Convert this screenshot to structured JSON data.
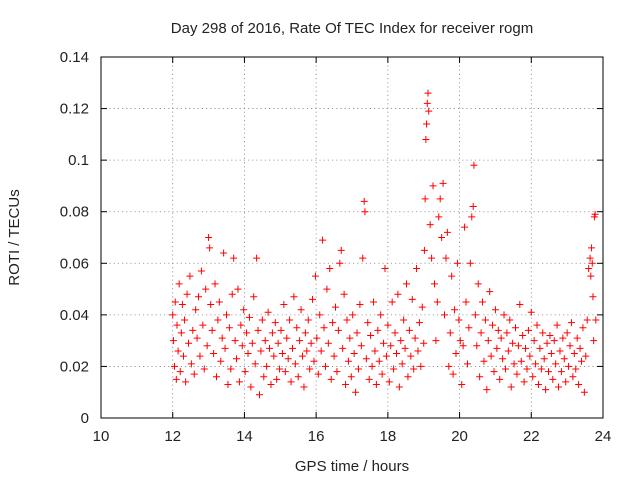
{
  "chart_data": {
    "type": "scatter",
    "title": "Day 298 of 2016, Rate Of TEC Index for receiver rogm",
    "xlabel": "GPS time / hours",
    "ylabel": "ROTI / TECUs",
    "xlim": [
      10,
      24
    ],
    "ylim": [
      0,
      0.14
    ],
    "grid": true,
    "marker": "+",
    "color": "#ff0000",
    "x_ticks": [
      10,
      12,
      14,
      16,
      18,
      20,
      22,
      24
    ],
    "x_tick_labels": [
      "10",
      "12",
      "14",
      "16",
      "18",
      "20",
      "22",
      "24"
    ],
    "y_ticks": [
      0,
      0.02,
      0.04,
      0.06,
      0.08,
      0.1,
      0.12,
      0.14
    ],
    "y_tick_labels": [
      "0",
      "0.02",
      "0.04",
      "0.06",
      "0.08",
      "0.1",
      "0.12",
      "0.14"
    ],
    "series": [
      {
        "name": "ROTI",
        "points": [
          [
            12.0,
            0.04
          ],
          [
            12.02,
            0.03
          ],
          [
            12.05,
            0.02
          ],
          [
            12.07,
            0.045
          ],
          [
            12.1,
            0.015
          ],
          [
            12.12,
            0.036
          ],
          [
            12.15,
            0.026
          ],
          [
            12.18,
            0.052
          ],
          [
            12.21,
            0.018
          ],
          [
            12.24,
            0.033
          ],
          [
            12.27,
            0.044
          ],
          [
            12.3,
            0.024
          ],
          [
            12.33,
            0.038
          ],
          [
            12.36,
            0.014
          ],
          [
            12.4,
            0.048
          ],
          [
            12.44,
            0.029
          ],
          [
            12.48,
            0.055
          ],
          [
            12.52,
            0.021
          ],
          [
            12.56,
            0.034
          ],
          [
            12.6,
            0.017
          ],
          [
            12.64,
            0.042
          ],
          [
            12.68,
            0.031
          ],
          [
            12.72,
            0.047
          ],
          [
            12.76,
            0.024
          ],
          [
            12.8,
            0.057
          ],
          [
            12.84,
            0.036
          ],
          [
            12.88,
            0.019
          ],
          [
            12.92,
            0.05
          ],
          [
            12.96,
            0.028
          ],
          [
            13.0,
            0.07
          ],
          [
            13.03,
            0.066
          ],
          [
            13.06,
            0.044
          ],
          [
            13.1,
            0.034
          ],
          [
            13.14,
            0.025
          ],
          [
            13.18,
            0.052
          ],
          [
            13.22,
            0.016
          ],
          [
            13.26,
            0.038
          ],
          [
            13.3,
            0.045
          ],
          [
            13.34,
            0.022
          ],
          [
            13.38,
            0.031
          ],
          [
            13.42,
            0.064
          ],
          [
            13.46,
            0.027
          ],
          [
            13.5,
            0.04
          ],
          [
            13.54,
            0.013
          ],
          [
            13.58,
            0.035
          ],
          [
            13.62,
            0.019
          ],
          [
            13.66,
            0.048
          ],
          [
            13.7,
            0.062
          ],
          [
            13.74,
            0.03
          ],
          [
            13.78,
            0.023
          ],
          [
            13.82,
            0.05
          ],
          [
            13.86,
            0.014
          ],
          [
            13.9,
            0.036
          ],
          [
            13.94,
            0.028
          ],
          [
            13.98,
            0.042
          ],
          [
            14.02,
            0.018
          ],
          [
            14.06,
            0.033
          ],
          [
            14.1,
            0.025
          ],
          [
            14.14,
            0.039
          ],
          [
            14.18,
            0.012
          ],
          [
            14.22,
            0.029
          ],
          [
            14.26,
            0.047
          ],
          [
            14.3,
            0.021
          ],
          [
            14.34,
            0.062
          ],
          [
            14.38,
            0.034
          ],
          [
            14.42,
            0.009
          ],
          [
            14.46,
            0.026
          ],
          [
            14.5,
            0.038
          ],
          [
            14.54,
            0.016
          ],
          [
            14.58,
            0.03
          ],
          [
            14.62,
            0.02
          ],
          [
            14.66,
            0.041
          ],
          [
            14.7,
            0.027
          ],
          [
            14.74,
            0.013
          ],
          [
            14.78,
            0.033
          ],
          [
            14.82,
            0.024
          ],
          [
            14.86,
            0.037
          ],
          [
            14.9,
            0.015
          ],
          [
            14.94,
            0.029
          ],
          [
            14.98,
            0.019
          ],
          [
            15.02,
            0.034
          ],
          [
            15.06,
            0.025
          ],
          [
            15.1,
            0.044
          ],
          [
            15.14,
            0.018
          ],
          [
            15.18,
            0.031
          ],
          [
            15.22,
            0.023
          ],
          [
            15.26,
            0.038
          ],
          [
            15.3,
            0.014
          ],
          [
            15.34,
            0.027
          ],
          [
            15.38,
            0.047
          ],
          [
            15.42,
            0.021
          ],
          [
            15.46,
            0.035
          ],
          [
            15.5,
            0.016
          ],
          [
            15.54,
            0.03
          ],
          [
            15.58,
            0.042
          ],
          [
            15.62,
            0.024
          ],
          [
            15.66,
            0.012
          ],
          [
            15.7,
            0.033
          ],
          [
            15.74,
            0.026
          ],
          [
            15.78,
            0.038
          ],
          [
            15.82,
            0.019
          ],
          [
            15.86,
            0.029
          ],
          [
            15.9,
            0.046
          ],
          [
            15.94,
            0.022
          ],
          [
            15.98,
            0.055
          ],
          [
            16.02,
            0.031
          ],
          [
            16.06,
            0.017
          ],
          [
            16.1,
            0.04
          ],
          [
            16.14,
            0.026
          ],
          [
            16.18,
            0.069
          ],
          [
            16.22,
            0.035
          ],
          [
            16.26,
            0.02
          ],
          [
            16.3,
            0.05
          ],
          [
            16.34,
            0.029
          ],
          [
            16.38,
            0.058
          ],
          [
            16.42,
            0.015
          ],
          [
            16.46,
            0.037
          ],
          [
            16.5,
            0.024
          ],
          [
            16.54,
            0.043
          ],
          [
            16.58,
            0.018
          ],
          [
            16.62,
            0.034
          ],
          [
            16.66,
            0.06
          ],
          [
            16.7,
            0.065
          ],
          [
            16.74,
            0.027
          ],
          [
            16.78,
            0.048
          ],
          [
            16.82,
            0.013
          ],
          [
            16.86,
            0.038
          ],
          [
            16.9,
            0.022
          ],
          [
            16.94,
            0.031
          ],
          [
            16.98,
            0.016
          ],
          [
            17.02,
            0.04
          ],
          [
            17.06,
            0.025
          ],
          [
            17.1,
            0.01
          ],
          [
            17.14,
            0.033
          ],
          [
            17.18,
            0.019
          ],
          [
            17.22,
            0.044
          ],
          [
            17.26,
            0.028
          ],
          [
            17.3,
            0.062
          ],
          [
            17.34,
            0.084
          ],
          [
            17.36,
            0.08
          ],
          [
            17.4,
            0.023
          ],
          [
            17.44,
            0.037
          ],
          [
            17.48,
            0.015
          ],
          [
            17.52,
            0.032
          ],
          [
            17.56,
            0.02
          ],
          [
            17.6,
            0.045
          ],
          [
            17.64,
            0.026
          ],
          [
            17.68,
            0.013
          ],
          [
            17.72,
            0.034
          ],
          [
            17.76,
            0.022
          ],
          [
            17.8,
            0.04
          ],
          [
            17.84,
            0.017
          ],
          [
            17.88,
            0.029
          ],
          [
            17.92,
            0.058
          ],
          [
            17.96,
            0.024
          ],
          [
            18.0,
            0.036
          ],
          [
            18.04,
            0.014
          ],
          [
            18.08,
            0.028
          ],
          [
            18.12,
            0.045
          ],
          [
            18.16,
            0.019
          ],
          [
            18.2,
            0.033
          ],
          [
            18.24,
            0.025
          ],
          [
            18.28,
            0.048
          ],
          [
            18.32,
            0.012
          ],
          [
            18.36,
            0.03
          ],
          [
            18.4,
            0.021
          ],
          [
            18.44,
            0.038
          ],
          [
            18.48,
            0.027
          ],
          [
            18.52,
            0.052
          ],
          [
            18.56,
            0.016
          ],
          [
            18.6,
            0.034
          ],
          [
            18.64,
            0.024
          ],
          [
            18.68,
            0.046
          ],
          [
            18.72,
            0.019
          ],
          [
            18.76,
            0.031
          ],
          [
            18.8,
            0.058
          ],
          [
            18.84,
            0.026
          ],
          [
            18.88,
            0.037
          ],
          [
            18.92,
            0.02
          ],
          [
            18.96,
            0.043
          ],
          [
            19.0,
            0.029
          ],
          [
            19.02,
            0.065
          ],
          [
            19.04,
            0.085
          ],
          [
            19.06,
            0.108
          ],
          [
            19.08,
            0.114
          ],
          [
            19.1,
            0.122
          ],
          [
            19.12,
            0.126
          ],
          [
            19.14,
            0.119
          ],
          [
            19.18,
            0.075
          ],
          [
            19.22,
            0.062
          ],
          [
            19.26,
            0.09
          ],
          [
            19.3,
            0.052
          ],
          [
            19.34,
            0.03
          ],
          [
            19.38,
            0.045
          ],
          [
            19.42,
            0.078
          ],
          [
            19.46,
            0.085
          ],
          [
            19.5,
            0.07
          ],
          [
            19.54,
            0.091
          ],
          [
            19.58,
            0.04
          ],
          [
            19.62,
            0.062
          ],
          [
            19.66,
            0.072
          ],
          [
            19.7,
            0.02
          ],
          [
            19.74,
            0.033
          ],
          [
            19.78,
            0.055
          ],
          [
            19.82,
            0.017
          ],
          [
            19.86,
            0.042
          ],
          [
            19.9,
            0.025
          ],
          [
            19.94,
            0.06
          ],
          [
            19.98,
            0.038
          ],
          [
            20.02,
            0.03
          ],
          [
            20.06,
            0.013
          ],
          [
            20.1,
            0.028
          ],
          [
            20.14,
            0.074
          ],
          [
            20.18,
            0.045
          ],
          [
            20.22,
            0.021
          ],
          [
            20.26,
            0.035
          ],
          [
            20.3,
            0.06
          ],
          [
            20.34,
            0.078
          ],
          [
            20.38,
            0.082
          ],
          [
            20.4,
            0.098
          ],
          [
            20.44,
            0.04
          ],
          [
            20.48,
            0.028
          ],
          [
            20.52,
            0.052
          ],
          [
            20.56,
            0.016
          ],
          [
            20.6,
            0.033
          ],
          [
            20.64,
            0.045
          ],
          [
            20.68,
            0.022
          ],
          [
            20.72,
            0.038
          ],
          [
            20.76,
            0.011
          ],
          [
            20.8,
            0.03
          ],
          [
            20.84,
            0.049
          ],
          [
            20.88,
            0.024
          ],
          [
            20.92,
            0.036
          ],
          [
            20.96,
            0.018
          ],
          [
            21.0,
            0.042
          ],
          [
            21.04,
            0.027
          ],
          [
            21.08,
            0.034
          ],
          [
            21.12,
            0.015
          ],
          [
            21.16,
            0.031
          ],
          [
            21.2,
            0.023
          ],
          [
            21.24,
            0.04
          ],
          [
            21.28,
            0.019
          ],
          [
            21.32,
            0.033
          ],
          [
            21.36,
            0.026
          ],
          [
            21.4,
            0.038
          ],
          [
            21.44,
            0.012
          ],
          [
            21.48,
            0.029
          ],
          [
            21.52,
            0.021
          ],
          [
            21.56,
            0.035
          ],
          [
            21.6,
            0.017
          ],
          [
            21.64,
            0.028
          ],
          [
            21.68,
            0.044
          ],
          [
            21.72,
            0.022
          ],
          [
            21.76,
            0.032
          ],
          [
            21.8,
            0.014
          ],
          [
            21.84,
            0.027
          ],
          [
            21.88,
            0.019
          ],
          [
            21.92,
            0.034
          ],
          [
            21.96,
            0.024
          ],
          [
            22.0,
            0.041
          ],
          [
            22.04,
            0.016
          ],
          [
            22.08,
            0.03
          ],
          [
            22.12,
            0.021
          ],
          [
            22.16,
            0.036
          ],
          [
            22.2,
            0.013
          ],
          [
            22.24,
            0.027
          ],
          [
            22.28,
            0.019
          ],
          [
            22.32,
            0.033
          ],
          [
            22.36,
            0.023
          ],
          [
            22.4,
            0.011
          ],
          [
            22.44,
            0.029
          ],
          [
            22.48,
            0.018
          ],
          [
            22.52,
            0.032
          ],
          [
            22.56,
            0.025
          ],
          [
            22.6,
            0.015
          ],
          [
            22.64,
            0.03
          ],
          [
            22.68,
            0.021
          ],
          [
            22.72,
            0.036
          ],
          [
            22.76,
            0.012
          ],
          [
            22.8,
            0.026
          ],
          [
            22.84,
            0.018
          ],
          [
            22.88,
            0.031
          ],
          [
            22.92,
            0.023
          ],
          [
            22.96,
            0.014
          ],
          [
            23.0,
            0.033
          ],
          [
            23.04,
            0.02
          ],
          [
            23.08,
            0.028
          ],
          [
            23.12,
            0.037
          ],
          [
            23.16,
            0.016
          ],
          [
            23.2,
            0.025
          ],
          [
            23.24,
            0.019
          ],
          [
            23.28,
            0.031
          ],
          [
            23.32,
            0.013
          ],
          [
            23.36,
            0.027
          ],
          [
            23.4,
            0.022
          ],
          [
            23.44,
            0.035
          ],
          [
            23.48,
            0.01
          ],
          [
            23.52,
            0.024
          ],
          [
            23.56,
            0.038
          ],
          [
            23.6,
            0.058
          ],
          [
            23.64,
            0.062
          ],
          [
            23.66,
            0.055
          ],
          [
            23.68,
            0.066
          ],
          [
            23.7,
            0.06
          ],
          [
            23.72,
            0.047
          ],
          [
            23.74,
            0.03
          ],
          [
            23.76,
            0.078
          ],
          [
            23.78,
            0.079
          ],
          [
            23.8,
            0.038
          ]
        ]
      }
    ]
  }
}
